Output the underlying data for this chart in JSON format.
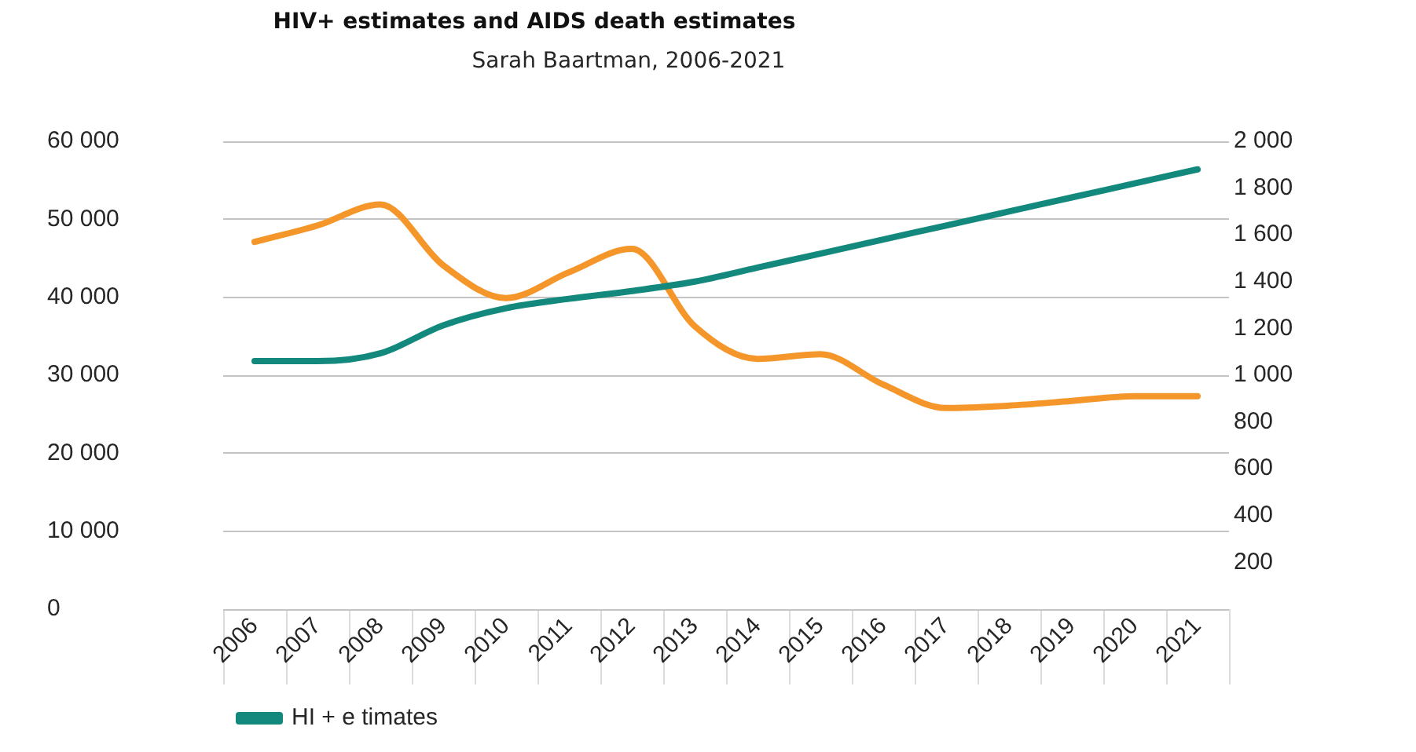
{
  "chart_data": {
    "type": "line",
    "title": "HIV+ estimates and AIDS death estimates",
    "subtitle": "Sarah Baartman, 2006-2021",
    "categories": [
      "2006",
      "2007",
      "2008",
      "2009",
      "2010",
      "2011",
      "2012",
      "2013",
      "2014",
      "2015",
      "2016",
      "2017",
      "2018",
      "2019",
      "2020",
      "2021"
    ],
    "series": [
      {
        "name": "HI + e timates",
        "color": "#13897d",
        "values": [
          31800,
          31800,
          32800,
          36400,
          38600,
          39800,
          40800,
          42000,
          43800,
          45600,
          47400,
          49200,
          51000,
          52800,
          54600,
          56400
        ]
      },
      {
        "color": "#f5962a",
        "axis": "y2",
        "values": [
          1570,
          1640,
          1730,
          1470,
          1330,
          1440,
          1540,
          1210,
          1070,
          1090,
          960,
          860,
          870,
          890,
          910,
          910
        ]
      }
    ],
    "ylim": [
      0,
      60000
    ],
    "yticks": [
      0,
      {
        "value": 10000,
        "label": "10 000"
      },
      {
        "value": 20000,
        "label": "20 000"
      },
      {
        "value": 30000,
        "label": "30 000"
      },
      {
        "value": 40000,
        "label": "40 000"
      },
      {
        "value": 50000,
        "label": "50 000"
      },
      {
        "value": 60000,
        "label": "60 000"
      }
    ],
    "y2lim": [
      0,
      2000
    ],
    "y2ticks": [
      200,
      400,
      600,
      800,
      {
        "value": 1000,
        "label": "1 000"
      },
      {
        "value": 1200,
        "label": "1 200"
      },
      {
        "value": 1400,
        "label": "1 400"
      },
      {
        "value": 1600,
        "label": "1 600"
      },
      {
        "value": 1800,
        "label": "1 800"
      },
      {
        "value": 2000,
        "label": "2 000"
      }
    ],
    "grid": "y",
    "legend": "bottom",
    "marker": "none",
    "line_style": "solid"
  }
}
